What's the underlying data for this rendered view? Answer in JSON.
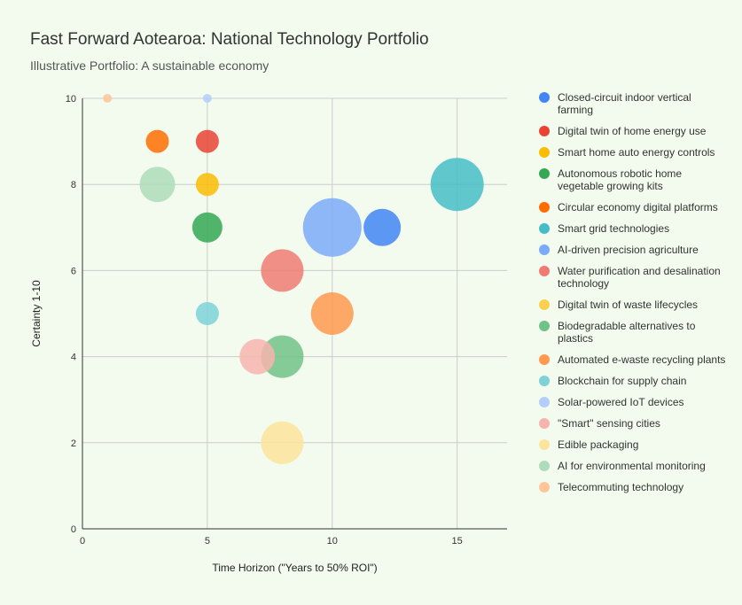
{
  "chart_data": {
    "type": "scatter",
    "title": "Fast Forward Aotearoa: National Technology Portfolio",
    "subtitle": "Illustrative Portfolio: A sustainable economy",
    "xlabel": "Time Horizon (\"Years to 50% ROI\")",
    "ylabel": "Certainty 1-10",
    "xlim": [
      0,
      17
    ],
    "ylim": [
      0,
      10
    ],
    "xticks": [
      0,
      5,
      10,
      15
    ],
    "yticks": [
      0,
      2,
      4,
      6,
      8,
      10
    ],
    "grid": true,
    "legend_position": "right",
    "series": [
      {
        "name": "Closed-circuit indoor vertical farming",
        "color": "#4285f4",
        "x": 12,
        "y": 7,
        "r": 21
      },
      {
        "name": "Digital twin of home energy use",
        "color": "#ea4335",
        "x": 5,
        "y": 9,
        "r": 13
      },
      {
        "name": "Smart home auto energy controls",
        "color": "#fbbc04",
        "x": 5,
        "y": 8,
        "r": 13
      },
      {
        "name": "Autonomous robotic home vegetable growing kits",
        "color": "#34a853",
        "x": 5,
        "y": 7,
        "r": 17
      },
      {
        "name": "Circular economy digital platforms",
        "color": "#ff6d01",
        "x": 3,
        "y": 9,
        "r": 13
      },
      {
        "name": "Smart grid technologies",
        "color": "#46bdc6",
        "x": 15,
        "y": 8,
        "r": 30
      },
      {
        "name": "AI-driven precision agriculture",
        "color": "#7baaf7",
        "x": 10,
        "y": 7,
        "r": 33
      },
      {
        "name": "Water purification and desalination technology",
        "color": "#f07b72",
        "x": 8,
        "y": 6,
        "r": 24
      },
      {
        "name": "Digital twin of waste lifecycles",
        "color": "#fcd04f",
        "x": 5,
        "y": 8,
        "r": 0
      },
      {
        "name": "Biodegradable alternatives to plastics",
        "color": "#71c287",
        "x": 8,
        "y": 4,
        "r": 24
      },
      {
        "name": "Automated e-waste recycling plants",
        "color": "#ff994d",
        "x": 10,
        "y": 5,
        "r": 24
      },
      {
        "name": "Blockchain for supply chain",
        "color": "#7ed1d7",
        "x": 5,
        "y": 5,
        "r": 13
      },
      {
        "name": "Solar-powered IoT devices",
        "color": "#b3cefb",
        "x": 5,
        "y": 10,
        "r": 5
      },
      {
        "name": "\"Smart\" sensing cities",
        "color": "#f7b4ae",
        "x": 7,
        "y": 4,
        "r": 20
      },
      {
        "name": "Edible packaging",
        "color": "#fde49b",
        "x": 8,
        "y": 2,
        "r": 24
      },
      {
        "name": "AI for environmental monitoring",
        "color": "#aedcba",
        "x": 3,
        "y": 8,
        "r": 20
      },
      {
        "name": "Telecommuting technology",
        "color": "#ffc599",
        "x": 1,
        "y": 10,
        "r": 5
      }
    ]
  }
}
